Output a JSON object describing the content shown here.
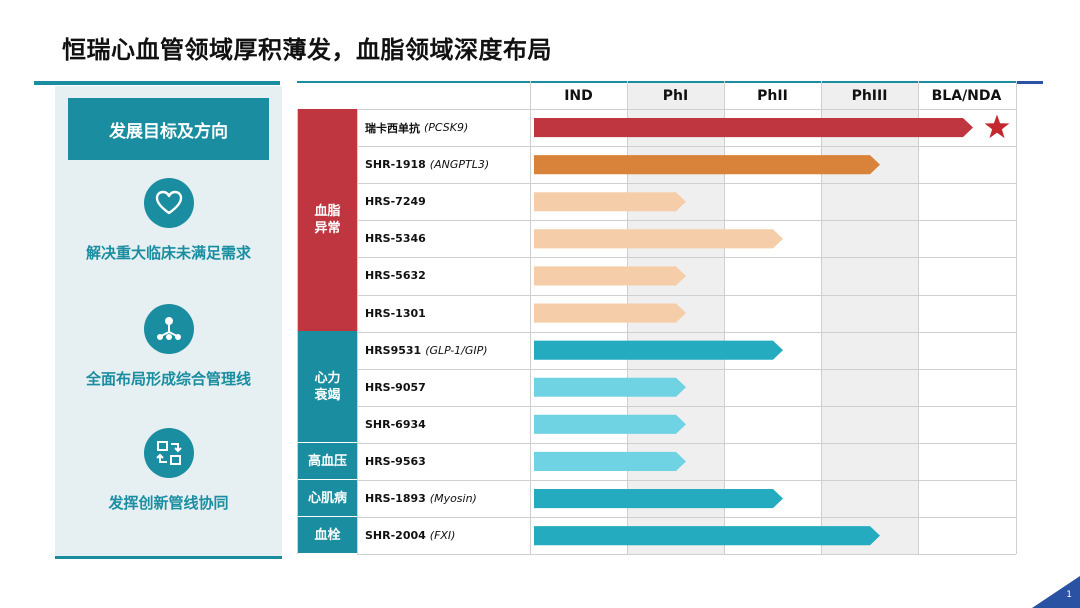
{
  "title": "恒瑞心血管领域厚积薄发，血脂领域深度布局",
  "left_panel": {
    "header": "发展目标及方向",
    "goals": [
      {
        "icon": "heart-icon",
        "label": "解决重大临床未满足需求"
      },
      {
        "icon": "network-icon",
        "label": "全面布局形成综合管理线"
      },
      {
        "icon": "sync-icon",
        "label": "发挥创新管线协同"
      }
    ]
  },
  "pipeline": {
    "phases": [
      "IND",
      "PhI",
      "PhII",
      "PhIII",
      "BLA/NDA"
    ],
    "categories": [
      {
        "label": "血脂\n异常",
        "color": "#bf3540",
        "rows": 6
      },
      {
        "label": "心力\n衰竭",
        "color": "#1a8ea0",
        "rows": 3
      },
      {
        "label": "高血压",
        "color": "#1a8ea0",
        "rows": 1
      },
      {
        "label": "心肌病",
        "color": "#1a8ea0",
        "rows": 1
      },
      {
        "label": "血栓",
        "color": "#1a8ea0",
        "rows": 1
      }
    ],
    "drugs": [
      {
        "name": "瑞卡西单抗",
        "target": "(PCSK9)",
        "phase": "BLA/NDA",
        "color": "#bf3540",
        "star": true
      },
      {
        "name": "SHR-1918",
        "target": "(ANGPTL3)",
        "phase": "PhIII",
        "color": "#d8823a"
      },
      {
        "name": "HRS-7249",
        "target": "",
        "phase": "PhI",
        "color": "#f6cda9"
      },
      {
        "name": "HRS-5346",
        "target": "",
        "phase": "PhII",
        "color": "#f6cda9"
      },
      {
        "name": "HRS-5632",
        "target": "",
        "phase": "PhI",
        "color": "#f6cda9"
      },
      {
        "name": "HRS-1301",
        "target": "",
        "phase": "PhI",
        "color": "#f6cda9"
      },
      {
        "name": "HRS9531",
        "target": "(GLP-1/GIP)",
        "phase": "PhII",
        "color": "#25abbf"
      },
      {
        "name": "HRS-9057",
        "target": "",
        "phase": "PhI",
        "color": "#6fd3e3"
      },
      {
        "name": "SHR-6934",
        "target": "",
        "phase": "PhI",
        "color": "#6fd3e3"
      },
      {
        "name": "HRS-9563",
        "target": "",
        "phase": "PhI",
        "color": "#6fd3e3"
      },
      {
        "name": "HRS-1893",
        "target": "(Myosin)",
        "phase": "PhII",
        "color": "#25abbf"
      },
      {
        "name": "SHR-2004",
        "target": "(FXI)",
        "phase": "PhIII",
        "color": "#25abbf"
      }
    ],
    "star_color": "#c4282f"
  },
  "page_number": "1"
}
